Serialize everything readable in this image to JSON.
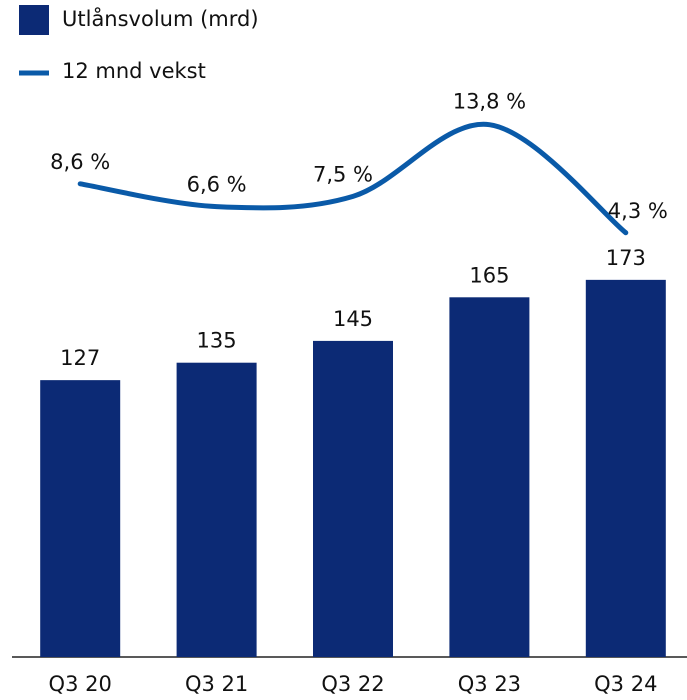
{
  "chart_data": {
    "type": "bar",
    "categories": [
      "Q3 20",
      "Q3 21",
      "Q3 22",
      "Q3 23",
      "Q3 24"
    ],
    "series": [
      {
        "name": "Utlånsvolum (mrd)",
        "type": "bar",
        "color": "#0c2a75",
        "values": [
          127,
          135,
          145,
          165,
          173
        ]
      },
      {
        "name": "12 mnd vekst",
        "type": "line",
        "axis": "y2",
        "color": "#0a5aa8",
        "values": [
          8.6,
          6.6,
          7.5,
          13.8,
          4.3
        ],
        "value_labels": [
          "8,6 %",
          "6,6 %",
          "7,5 %",
          "13,8 %",
          "4,3 %"
        ]
      }
    ],
    "ylim": [
      0,
      300
    ],
    "y2lim": [
      -33,
      24.5
    ],
    "legend": "top-left"
  }
}
